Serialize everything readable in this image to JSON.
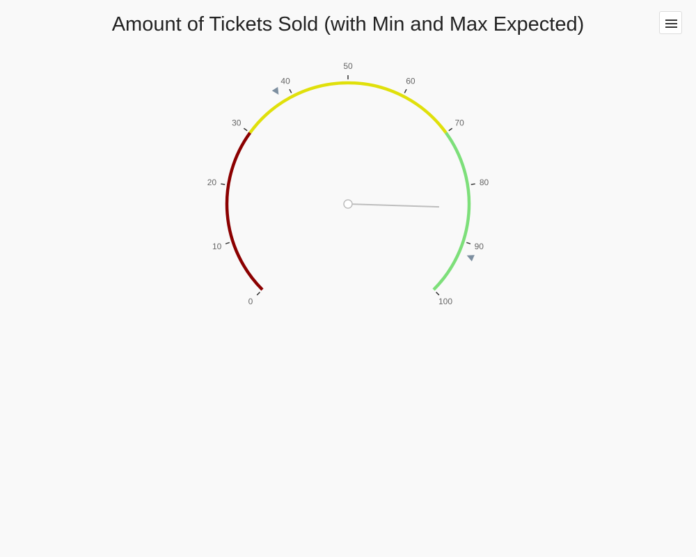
{
  "header": {
    "title": "Amount of Tickets Sold (with Min and Max Expected)",
    "menu_icon": "hamburger-menu-icon"
  },
  "chart_data": {
    "type": "gauge",
    "title": "Amount of Tickets Sold (with Min and Max Expected)",
    "min": 0,
    "max": 100,
    "tick_labels": [
      "0",
      "10",
      "20",
      "30",
      "40",
      "50",
      "60",
      "70",
      "80",
      "90",
      "100"
    ],
    "value": 84,
    "min_expected": 38,
    "max_expected": 92,
    "bands": [
      {
        "from": 0,
        "to": 30,
        "color": "#8b0000"
      },
      {
        "from": 30,
        "to": 70,
        "color": "#e0e00b"
      },
      {
        "from": 70,
        "to": 100,
        "color": "#7ddf7a"
      }
    ],
    "needle_color": "#bdbdbd",
    "marker_color": "#7d8fa0"
  }
}
